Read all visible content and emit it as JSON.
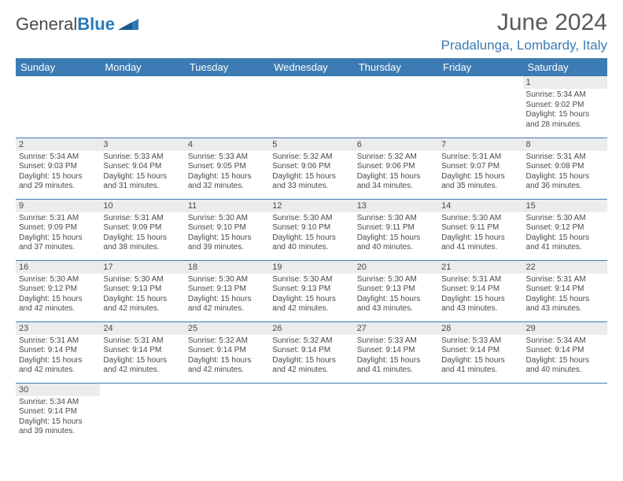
{
  "logo": {
    "text1": "General",
    "text2": "Blue"
  },
  "title": "June 2024",
  "location": "Pradalunga, Lombardy, Italy",
  "colors": {
    "header_bg": "#3c7bb3",
    "header_fg": "#ffffff",
    "daynum_bg": "#ececec",
    "border": "#3c7bb3",
    "title_color": "#595959",
    "location_color": "#3c7bb3",
    "text_color": "#4a4a4a"
  },
  "typography": {
    "month_title_fontsize": 30,
    "location_fontsize": 17,
    "weekday_fontsize": 13,
    "daynum_fontsize": 11,
    "body_fontsize": 10
  },
  "weekdays": [
    "Sunday",
    "Monday",
    "Tuesday",
    "Wednesday",
    "Thursday",
    "Friday",
    "Saturday"
  ],
  "weeks": [
    [
      null,
      null,
      null,
      null,
      null,
      null,
      {
        "d": "1",
        "sr": "5:34 AM",
        "ss": "9:02 PM",
        "dl": "15 hours and 28 minutes."
      }
    ],
    [
      {
        "d": "2",
        "sr": "5:34 AM",
        "ss": "9:03 PM",
        "dl": "15 hours and 29 minutes."
      },
      {
        "d": "3",
        "sr": "5:33 AM",
        "ss": "9:04 PM",
        "dl": "15 hours and 31 minutes."
      },
      {
        "d": "4",
        "sr": "5:33 AM",
        "ss": "9:05 PM",
        "dl": "15 hours and 32 minutes."
      },
      {
        "d": "5",
        "sr": "5:32 AM",
        "ss": "9:06 PM",
        "dl": "15 hours and 33 minutes."
      },
      {
        "d": "6",
        "sr": "5:32 AM",
        "ss": "9:06 PM",
        "dl": "15 hours and 34 minutes."
      },
      {
        "d": "7",
        "sr": "5:31 AM",
        "ss": "9:07 PM",
        "dl": "15 hours and 35 minutes."
      },
      {
        "d": "8",
        "sr": "5:31 AM",
        "ss": "9:08 PM",
        "dl": "15 hours and 36 minutes."
      }
    ],
    [
      {
        "d": "9",
        "sr": "5:31 AM",
        "ss": "9:09 PM",
        "dl": "15 hours and 37 minutes."
      },
      {
        "d": "10",
        "sr": "5:31 AM",
        "ss": "9:09 PM",
        "dl": "15 hours and 38 minutes."
      },
      {
        "d": "11",
        "sr": "5:30 AM",
        "ss": "9:10 PM",
        "dl": "15 hours and 39 minutes."
      },
      {
        "d": "12",
        "sr": "5:30 AM",
        "ss": "9:10 PM",
        "dl": "15 hours and 40 minutes."
      },
      {
        "d": "13",
        "sr": "5:30 AM",
        "ss": "9:11 PM",
        "dl": "15 hours and 40 minutes."
      },
      {
        "d": "14",
        "sr": "5:30 AM",
        "ss": "9:11 PM",
        "dl": "15 hours and 41 minutes."
      },
      {
        "d": "15",
        "sr": "5:30 AM",
        "ss": "9:12 PM",
        "dl": "15 hours and 41 minutes."
      }
    ],
    [
      {
        "d": "16",
        "sr": "5:30 AM",
        "ss": "9:12 PM",
        "dl": "15 hours and 42 minutes."
      },
      {
        "d": "17",
        "sr": "5:30 AM",
        "ss": "9:13 PM",
        "dl": "15 hours and 42 minutes."
      },
      {
        "d": "18",
        "sr": "5:30 AM",
        "ss": "9:13 PM",
        "dl": "15 hours and 42 minutes."
      },
      {
        "d": "19",
        "sr": "5:30 AM",
        "ss": "9:13 PM",
        "dl": "15 hours and 42 minutes."
      },
      {
        "d": "20",
        "sr": "5:30 AM",
        "ss": "9:13 PM",
        "dl": "15 hours and 43 minutes."
      },
      {
        "d": "21",
        "sr": "5:31 AM",
        "ss": "9:14 PM",
        "dl": "15 hours and 43 minutes."
      },
      {
        "d": "22",
        "sr": "5:31 AM",
        "ss": "9:14 PM",
        "dl": "15 hours and 43 minutes."
      }
    ],
    [
      {
        "d": "23",
        "sr": "5:31 AM",
        "ss": "9:14 PM",
        "dl": "15 hours and 42 minutes."
      },
      {
        "d": "24",
        "sr": "5:31 AM",
        "ss": "9:14 PM",
        "dl": "15 hours and 42 minutes."
      },
      {
        "d": "25",
        "sr": "5:32 AM",
        "ss": "9:14 PM",
        "dl": "15 hours and 42 minutes."
      },
      {
        "d": "26",
        "sr": "5:32 AM",
        "ss": "9:14 PM",
        "dl": "15 hours and 42 minutes."
      },
      {
        "d": "27",
        "sr": "5:33 AM",
        "ss": "9:14 PM",
        "dl": "15 hours and 41 minutes."
      },
      {
        "d": "28",
        "sr": "5:33 AM",
        "ss": "9:14 PM",
        "dl": "15 hours and 41 minutes."
      },
      {
        "d": "29",
        "sr": "5:34 AM",
        "ss": "9:14 PM",
        "dl": "15 hours and 40 minutes."
      }
    ],
    [
      {
        "d": "30",
        "sr": "5:34 AM",
        "ss": "9:14 PM",
        "dl": "15 hours and 39 minutes."
      },
      null,
      null,
      null,
      null,
      null,
      null
    ]
  ],
  "labels": {
    "sunrise": "Sunrise:",
    "sunset": "Sunset:",
    "daylight": "Daylight:"
  }
}
